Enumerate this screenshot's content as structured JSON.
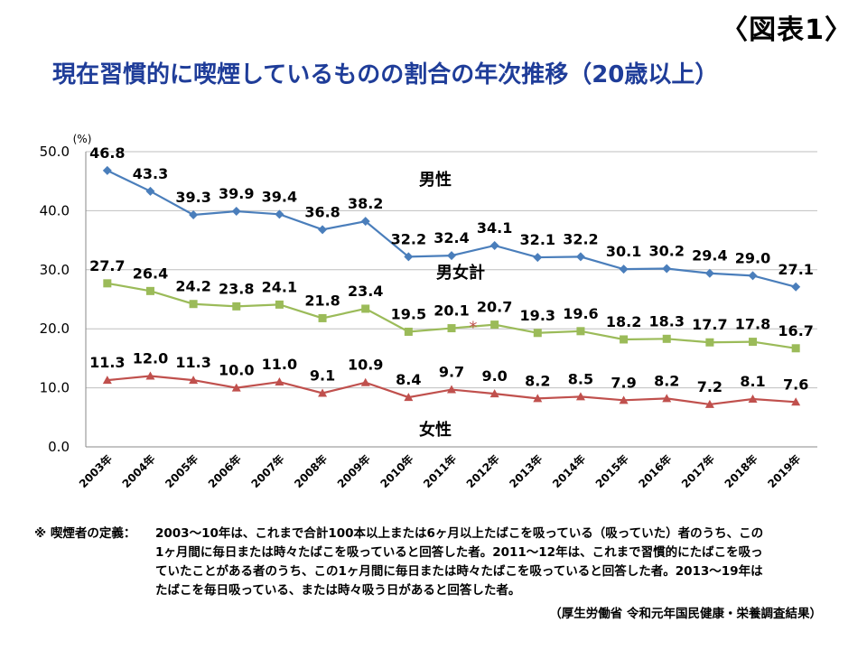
{
  "figure_label": "〈図表1〉",
  "chart_data": {
    "type": "line",
    "title": "現在習慣的に喫煙しているものの割合の年次推移（20歳以上）",
    "unit_label": "(%)",
    "x": [
      "2003年",
      "2004年",
      "2005年",
      "2006年",
      "2007年",
      "2008年",
      "2009年",
      "2010年",
      "2011年",
      "2012年",
      "2013年",
      "2014年",
      "2015年",
      "2016年",
      "2017年",
      "2018年",
      "2019年"
    ],
    "ylim": [
      0,
      50
    ],
    "yticks": [
      "0.0",
      "10.0",
      "20.0",
      "30.0",
      "40.0",
      "50.0"
    ],
    "legend": "inline",
    "series": [
      {
        "name": "男性",
        "color": "#4a7ebb",
        "marker": "diamond",
        "values": [
          46.8,
          43.3,
          39.3,
          39.9,
          39.4,
          36.8,
          38.2,
          32.2,
          32.4,
          34.1,
          32.1,
          32.2,
          30.1,
          30.2,
          29.4,
          29.0,
          27.1
        ],
        "labels": [
          "46.8",
          "43.3",
          "39.3",
          "39.9",
          "39.4",
          "36.8",
          "38.2",
          "32.2",
          "32.4",
          "34.1",
          "32.1",
          "32.2",
          "30.1",
          "30.2",
          "29.4",
          "29.0",
          "27.1"
        ]
      },
      {
        "name": "男女計",
        "color": "#9bbb59",
        "marker": "square",
        "values": [
          27.7,
          26.4,
          24.2,
          23.8,
          24.1,
          21.8,
          23.4,
          19.5,
          20.1,
          20.7,
          19.3,
          19.6,
          18.2,
          18.3,
          17.7,
          17.8,
          16.7
        ],
        "labels": [
          "27.7",
          "26.4",
          "24.2",
          "23.8",
          "24.1",
          "21.8",
          "23.4",
          "19.5",
          "20.1",
          "20.7",
          "19.3",
          "19.6",
          "18.2",
          "18.3",
          "17.7",
          "17.8",
          "16.7"
        ]
      },
      {
        "name": "女性",
        "color": "#c0504d",
        "marker": "triangle",
        "values": [
          11.3,
          12.0,
          11.3,
          10.0,
          11.0,
          9.1,
          10.9,
          8.4,
          9.7,
          9.0,
          8.2,
          8.5,
          7.9,
          8.2,
          7.2,
          8.1,
          7.6
        ],
        "labels": [
          "11.3",
          "12.0",
          "11.3",
          "10.0",
          "11.0",
          "9.1",
          "10.9",
          "8.4",
          "9.7",
          "9.0",
          "8.2",
          "8.5",
          "7.9",
          "8.2",
          "7.2",
          "8.1",
          "7.6"
        ]
      }
    ],
    "annotations": [
      "*"
    ]
  },
  "note": {
    "head": "※ 喫煙者の定義：",
    "lines": [
      "2003～10年は、これまで合計100本以上または6ヶ月以上たばこを吸っている（吸っていた）者のうち、この",
      "1ヶ月間に毎日または時々たばこを吸っていると回答した者。2011～12年は、これまで習慣的にたばこを吸っ",
      "ていたことがある者のうち、この1ヶ月間に毎日または時々たばこを吸っていると回答した者。2013～19年は",
      "たばこを毎日吸っている、または時々吸う日があると回答した者。"
    ]
  },
  "source": "（厚生労働省 令和元年国民健康・栄養調査結果）"
}
